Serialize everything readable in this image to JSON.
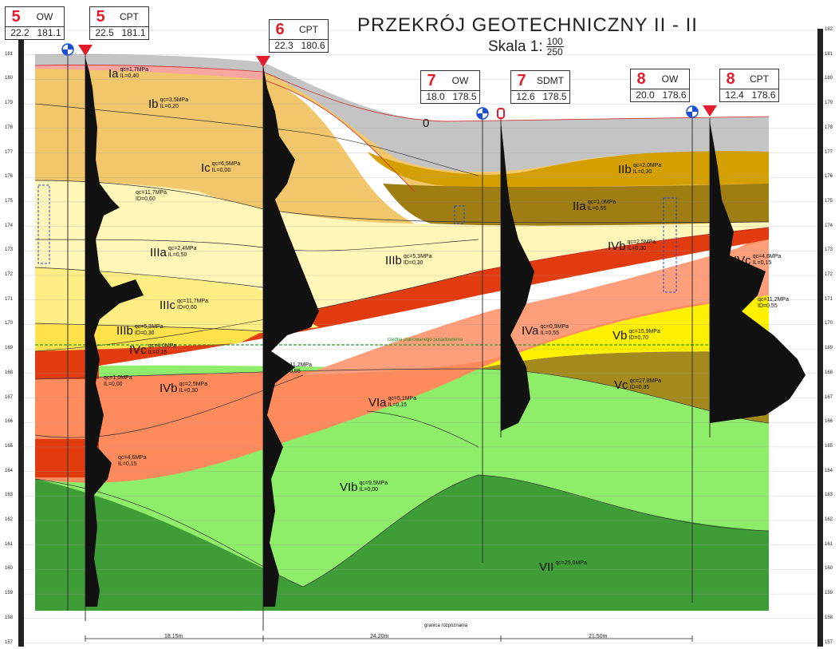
{
  "title": "PRZEKRÓJ GEOTECHNICZNY  II - II",
  "scale": {
    "prefix": "Skala 1:",
    "numerator": "100",
    "denominator": "250"
  },
  "boreholes": [
    {
      "num": "5",
      "type": "OW",
      "depth": "22.2",
      "elev": "181.1"
    },
    {
      "num": "5",
      "type": "CPT",
      "depth": "22.5",
      "elev": "181.1"
    },
    {
      "num": "6",
      "type": "CPT",
      "depth": "22.3",
      "elev": "180.6"
    },
    {
      "num": "7",
      "type": "OW",
      "depth": "18.0",
      "elev": "178.5"
    },
    {
      "num": "7",
      "type": "SDMT",
      "depth": "12.6",
      "elev": "178.5"
    },
    {
      "num": "8",
      "type": "OW",
      "depth": "20.0",
      "elev": "178.6"
    },
    {
      "num": "8",
      "type": "CPT",
      "depth": "12.4",
      "elev": "178.6"
    }
  ],
  "layers": [
    {
      "code": "Ia",
      "p1": "qc=1,7MPa",
      "p2": "IL=0,40"
    },
    {
      "code": "Ib",
      "p1": "qc=3,5MPa",
      "p2": "IL=0,20"
    },
    {
      "code": "Ic",
      "p1": "qc=6,5MPa",
      "p2": "IL=0,00"
    },
    {
      "code": "0",
      "p1": "",
      "p2": ""
    },
    {
      "code": "IIb",
      "p1": "qc=2,0MPa",
      "p2": "IL=0,30"
    },
    {
      "code": "IIa",
      "p1": "qc=1,0MPa",
      "p2": "IL=0,55"
    },
    {
      "code": "",
      "p1": "qc=11,7MPa",
      "p2": "ID=0,60"
    },
    {
      "code": "IIIa",
      "p1": "qc=2,4MPa",
      "p2": "IL=0,50"
    },
    {
      "code": "IIIb",
      "p1": "qc=5,3MPa",
      "p2": "ID=0,30"
    },
    {
      "code": "IIIc",
      "p1": "qc=11,7MPa",
      "p2": "ID=0,60"
    },
    {
      "code": "IIIb",
      "p1": "qc=5,3MPa",
      "p2": "ID=0,30"
    },
    {
      "code": "IVc",
      "p1": "qc=4,6MPa",
      "p2": "IL=0,15"
    },
    {
      "code": "IVb",
      "p1": "qc=2,5MPa",
      "p2": "IL=0,30"
    },
    {
      "code": "IVb",
      "p1": "qc=2,5MPa",
      "p2": "IL=0,30"
    },
    {
      "code": "IVa",
      "p1": "qc=0,9MPa",
      "p2": "IL=0,55"
    },
    {
      "code": "IVc",
      "p1": "qc=4,6MPa",
      "p2": "IL=0,15"
    },
    {
      "code": "Vb",
      "p1": "qc=15,9MPa",
      "p2": "ID=0,70"
    },
    {
      "code": "Vc",
      "p1": "qc=27,8MPa",
      "p2": "ID=0,85"
    },
    {
      "code": "",
      "p1": "qc=11,2MPa",
      "p2": "ID=0,55"
    },
    {
      "code": "VIa",
      "p1": "qc=5,1MPa",
      "p2": "IL=0,15"
    },
    {
      "code": "VIb",
      "p1": "qc=9,5MPa",
      "p2": "IL=0,00"
    },
    {
      "code": "VII",
      "p1": "qc=25,0MPa",
      "p2": ""
    },
    {
      "code": "",
      "p1": "qc=11,2MPa",
      "p2": "ID=0,55"
    },
    {
      "code": "",
      "p1": "qc=4,6MPa",
      "p2": "IL=0,15"
    },
    {
      "code": "",
      "p1": "qc=1,0MPa",
      "p2": "IL=0,00"
    }
  ],
  "axis_left_ticks": [
    "182",
    "181",
    "180",
    "179",
    "178",
    "177",
    "176",
    "175",
    "174",
    "173",
    "172",
    "171",
    "170",
    "169",
    "168",
    "167",
    "166",
    "165",
    "164",
    "163",
    "162",
    "161",
    "160",
    "159",
    "158",
    "157"
  ],
  "distances": [
    "18.15m",
    "24.20m",
    "21.50m"
  ],
  "notes": {
    "planned_level": "rzędna planowanego posadowienia",
    "investigation_limit": "granica rozpoznania"
  },
  "colors": {
    "fill_0": "#c4c4c4",
    "layer_I": "#f2c66a",
    "layer_II": "#d3a000",
    "layer_IIa": "#9f7d12",
    "layer_III": "#fff6b8",
    "layer_IIIc": "#ffee84",
    "layer_IV": "#ff8a5c",
    "layer_IVc": "#e23b10",
    "layer_V": "#a48a1c",
    "layer_VI": "#8eee6a",
    "layer_VII": "#3f9d38"
  }
}
